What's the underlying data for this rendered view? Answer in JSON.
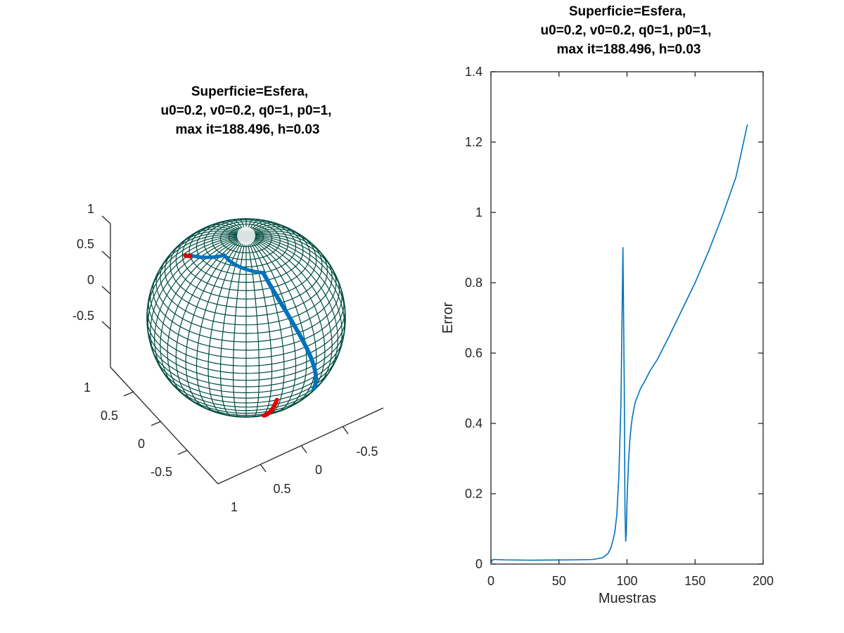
{
  "chart_data": [
    {
      "type": "surface3d",
      "title_lines": [
        "Superficie=Esfera,",
        "u0=0.2, v0=0.2, q0=1, p0=1,",
        "max it=188.496, h=0.03"
      ],
      "surface": "sphere",
      "radius": 1,
      "mesh_color": "#004d40",
      "z_ticks": [
        "1",
        "0.5",
        "0",
        "-0.5"
      ],
      "y_ticks": [
        "1",
        "0.5",
        "0",
        "-0.5"
      ],
      "x_ticks": [
        "1",
        "0.5",
        "0",
        "-0.5"
      ],
      "xlim": [
        -1,
        1
      ],
      "ylim": [
        -1,
        1
      ],
      "zlim": [
        -1,
        1
      ],
      "series": [
        {
          "color": "#0072bd"
        },
        {
          "color": "#e00000"
        }
      ]
    },
    {
      "type": "line",
      "title_lines": [
        "Superficie=Esfera,",
        "u0=0.2, v0=0.2, q0=1, p0=1,",
        "max it=188.496, h=0.03"
      ],
      "xlabel": "Muestras",
      "ylabel": "Error",
      "xlim": [
        0,
        200
      ],
      "ylim": [
        0,
        1.4
      ],
      "x_ticks": [
        "0",
        "50",
        "100",
        "150",
        "200"
      ],
      "y_ticks": [
        "0",
        "0.2",
        "0.4",
        "0.6",
        "0.8",
        "1",
        "1.2",
        "1.4"
      ],
      "grid": false,
      "series": [
        {
          "color": "#0072bd",
          "x": [
            0,
            1,
            3,
            10,
            30,
            60,
            75,
            82,
            86,
            88,
            89.5,
            91,
            92.5,
            94,
            95.5,
            97,
            98,
            98.5,
            99,
            99.5,
            100,
            101,
            102,
            103,
            104,
            106,
            108,
            110,
            113,
            117,
            122,
            130,
            140,
            150,
            160,
            170,
            180,
            188.5
          ],
          "y": [
            0,
            0.012,
            0.013,
            0.012,
            0.011,
            0.012,
            0.013,
            0.018,
            0.03,
            0.045,
            0.065,
            0.09,
            0.14,
            0.25,
            0.45,
            0.9,
            0.5,
            0.15,
            0.065,
            0.09,
            0.18,
            0.28,
            0.35,
            0.39,
            0.42,
            0.46,
            0.48,
            0.5,
            0.52,
            0.55,
            0.58,
            0.64,
            0.72,
            0.8,
            0.89,
            0.99,
            1.1,
            1.25
          ]
        }
      ]
    }
  ]
}
